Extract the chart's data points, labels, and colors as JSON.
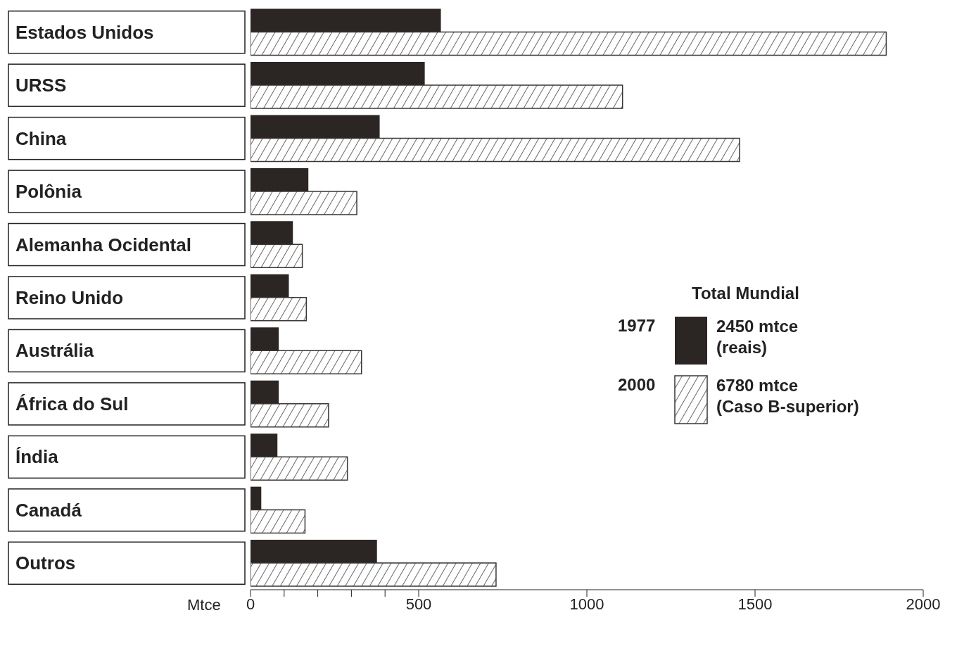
{
  "chart_data": {
    "type": "bar",
    "orientation": "horizontal",
    "xlabel": "Mtce",
    "legend_title": "Total Mundial",
    "legend": "right",
    "categories": [
      "Estados Unidos",
      "URSS",
      "China",
      "Polônia",
      "Alemanha Ocidental",
      "Reino Unido",
      "Austrália",
      "África do Sul",
      "Índia",
      "Canadá",
      "Outros"
    ],
    "series": [
      {
        "name": "1977",
        "color": "#2b2624",
        "values": [
          566,
          518,
          384,
          172,
          126,
          114,
          84,
          84,
          80,
          32,
          376
        ]
      },
      {
        "name": "2000",
        "color": "#3a3634",
        "values": [
          1890,
          1106,
          1454,
          316,
          154,
          166,
          330,
          232,
          288,
          162,
          730
        ]
      }
    ],
    "annotations": [
      "2450 mtce\n(reais)",
      "6780 mtce\n(Caso B-superior)"
    ],
    "xlim": [
      0,
      2000
    ],
    "xticks": [
      0,
      {
        "value": 100,
        "label": null
      },
      {
        "value": 200,
        "label": null
      },
      {
        "value": 300,
        "label": null
      },
      {
        "value": 400,
        "label": null
      },
      500,
      1000,
      1500,
      2000
    ]
  }
}
